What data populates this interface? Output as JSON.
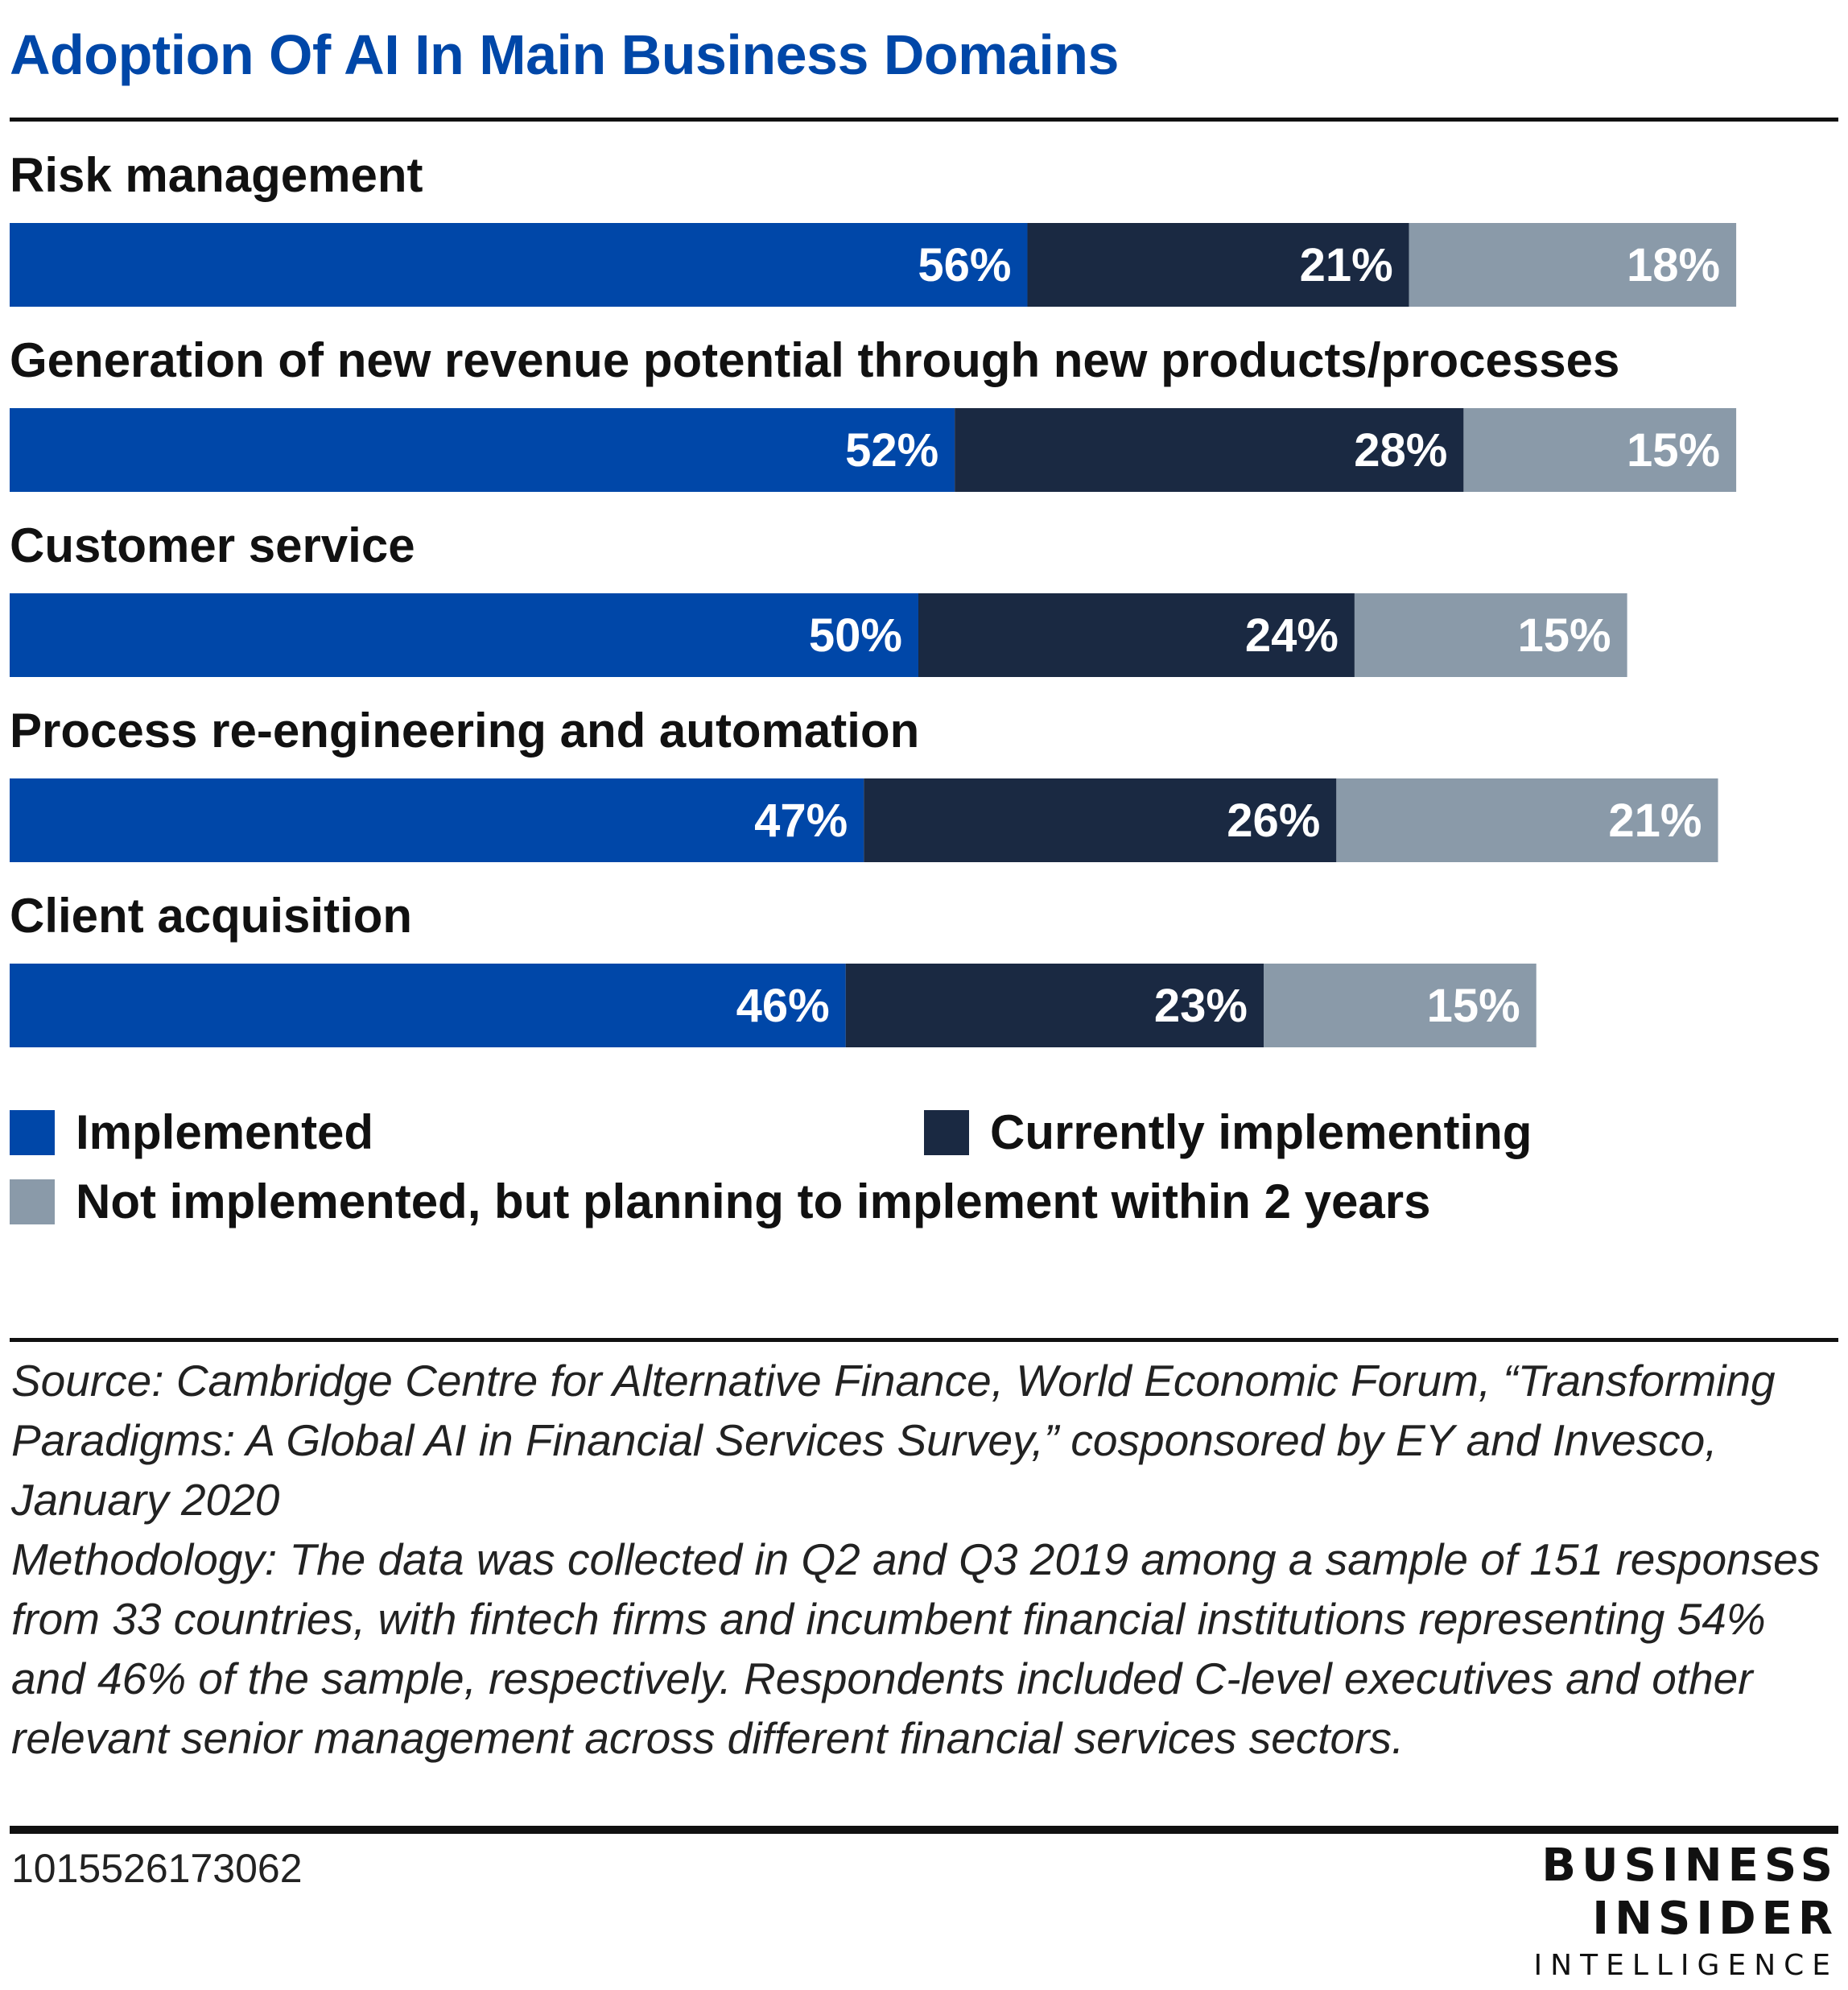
{
  "header": {
    "title": "Adoption Of AI In Main Business Domains"
  },
  "colors": {
    "title": "#0047A8",
    "implemented": "#0047A8",
    "currently_implementing": "#1A2942",
    "planning": "#8A9AA9",
    "rule": "#111111"
  },
  "chart_data": {
    "type": "bar",
    "orientation": "horizontal",
    "stacked": true,
    "title": "Adoption Of AI In Main Business Domains",
    "categories": [
      "Risk management",
      "Generation of new revenue potential through new products/processes",
      "Customer service",
      "Process re-engineering and automation",
      "Client acquisition"
    ],
    "series": [
      {
        "name": "Implemented",
        "color": "#0047A8",
        "values": [
          56,
          52,
          50,
          47,
          46
        ]
      },
      {
        "name": "Currently implementing",
        "color": "#1A2942",
        "values": [
          21,
          28,
          24,
          26,
          23
        ]
      },
      {
        "name": "Not implemented, but planning to implement within 2 years",
        "color": "#8A9AA9",
        "values": [
          18,
          15,
          15,
          21,
          15
        ]
      }
    ],
    "value_suffix": "%",
    "xlim": [
      0,
      100
    ],
    "grid": false,
    "legend_position": "bottom"
  },
  "legend": {
    "implemented": "Implemented",
    "currently_implementing": "Currently implementing",
    "planning": "Not implemented, but planning to implement within 2 years"
  },
  "notes": {
    "source": "Source: Cambridge Centre for Alternative Finance, World Economic Forum, “Transforming Paradigms: A Global AI in Financial Services Survey,” cosponsored by EY and Invesco, January 2020",
    "methodology": "Methodology: The data was collected in Q2 and Q3 2019 among a sample of 151 responses from 33 countries, with fintech firms and incumbent financial institutions representing 54% and 46% of the sample, respectively. Respondents included C-level executives and other relevant senior management across different financial services sectors."
  },
  "footer": {
    "chart_id": "1015526173062",
    "logo": [
      "BUSINESS",
      "INSIDER",
      "INTELLIGENCE"
    ]
  }
}
